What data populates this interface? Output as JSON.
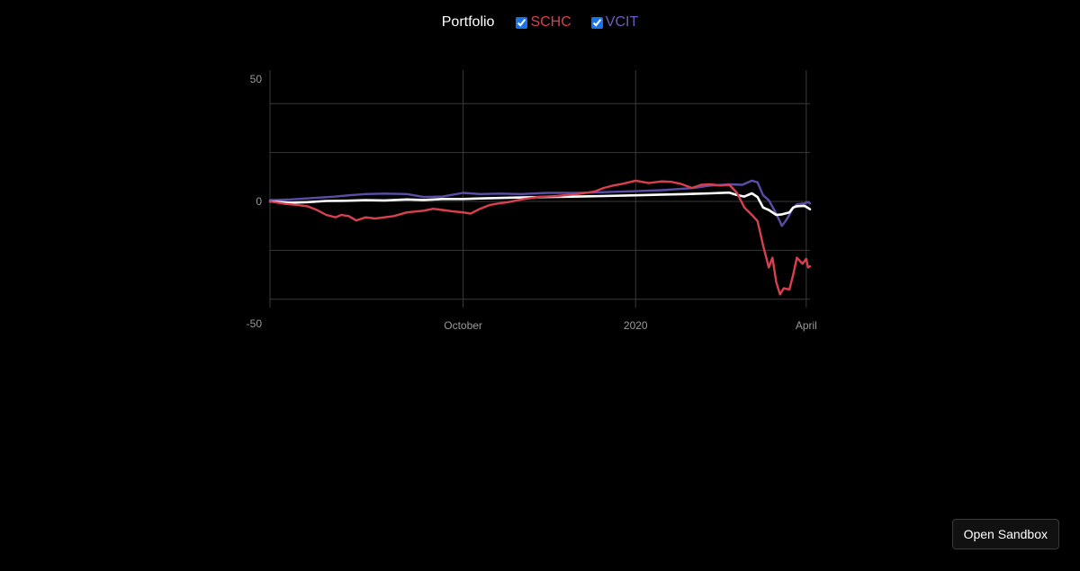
{
  "legend": {
    "portfolio_label": "Portfolio",
    "series": [
      {
        "label": "SCHC",
        "color": "#d9404f",
        "checked": true
      },
      {
        "label": "VCIT",
        "color": "#5a4fa8",
        "checked": true
      }
    ]
  },
  "sandbox_button": "Open Sandbox",
  "chart_data": {
    "type": "line",
    "ylim": [
      -50,
      50
    ],
    "ytick_labels": [
      {
        "value": 50,
        "label": "50"
      },
      {
        "value": 0,
        "label": "0"
      },
      {
        "value": -50,
        "label": "-50"
      }
    ],
    "gridlines_y": [
      40,
      20,
      0,
      -20,
      -40
    ],
    "x_range": [
      "2019-06-20",
      "2020-04-03"
    ],
    "xtick_labels": [
      {
        "date": "2019-10-01",
        "label": "October"
      },
      {
        "date": "2020-01-01",
        "label": "2020"
      },
      {
        "date": "2020-04-01",
        "label": "April"
      }
    ],
    "grid": true,
    "colors": {
      "Portfolio": "#ffffff",
      "SCHC": "#d9404f",
      "VCIT": "#5a4fa8"
    },
    "series": [
      {
        "name": "Portfolio",
        "points": [
          [
            "2019-06-20",
            0
          ],
          [
            "2019-07-01",
            -0.5
          ],
          [
            "2019-07-10",
            -0.3
          ],
          [
            "2019-07-20",
            0.2
          ],
          [
            "2019-08-01",
            0.3
          ],
          [
            "2019-08-10",
            0.5
          ],
          [
            "2019-08-20",
            0.4
          ],
          [
            "2019-09-01",
            0.8
          ],
          [
            "2019-09-10",
            0.6
          ],
          [
            "2019-09-20",
            1.0
          ],
          [
            "2019-10-01",
            1.0
          ],
          [
            "2019-10-10",
            1.2
          ],
          [
            "2019-10-20",
            1.4
          ],
          [
            "2019-11-01",
            1.6
          ],
          [
            "2019-11-15",
            1.8
          ],
          [
            "2019-12-01",
            2.0
          ],
          [
            "2019-12-15",
            2.2
          ],
          [
            "2020-01-01",
            2.5
          ],
          [
            "2020-01-15",
            2.8
          ],
          [
            "2020-02-01",
            3.1
          ],
          [
            "2020-02-10",
            3.3
          ],
          [
            "2020-02-20",
            3.6
          ],
          [
            "2020-02-24",
            2.6
          ],
          [
            "2020-02-28",
            2.0
          ],
          [
            "2020-03-03",
            3.3
          ],
          [
            "2020-03-06",
            1.8
          ],
          [
            "2020-03-09",
            -2.5
          ],
          [
            "2020-03-12",
            -3.5
          ],
          [
            "2020-03-16",
            -5.5
          ],
          [
            "2020-03-19",
            -5.3
          ],
          [
            "2020-03-23",
            -4.5
          ],
          [
            "2020-03-25",
            -2.5
          ],
          [
            "2020-03-27",
            -2.0
          ],
          [
            "2020-03-31",
            -1.8
          ],
          [
            "2020-04-02",
            -2.7
          ],
          [
            "2020-04-03",
            -3.2
          ]
        ]
      },
      {
        "name": "SCHC",
        "points": [
          [
            "2019-06-20",
            0
          ],
          [
            "2019-06-28",
            -1.0
          ],
          [
            "2019-07-05",
            -1.5
          ],
          [
            "2019-07-10",
            -2.0
          ],
          [
            "2019-07-15",
            -3.5
          ],
          [
            "2019-07-20",
            -5.5
          ],
          [
            "2019-07-25",
            -6.5
          ],
          [
            "2019-07-28",
            -5.5
          ],
          [
            "2019-08-01",
            -6.0
          ],
          [
            "2019-08-05",
            -7.8
          ],
          [
            "2019-08-10",
            -6.5
          ],
          [
            "2019-08-15",
            -7.0
          ],
          [
            "2019-08-20",
            -6.5
          ],
          [
            "2019-08-25",
            -6.0
          ],
          [
            "2019-09-01",
            -4.5
          ],
          [
            "2019-09-10",
            -3.8
          ],
          [
            "2019-09-15",
            -3.0
          ],
          [
            "2019-09-20",
            -3.5
          ],
          [
            "2019-09-25",
            -4.0
          ],
          [
            "2019-10-01",
            -4.5
          ],
          [
            "2019-10-05",
            -5.0
          ],
          [
            "2019-10-10",
            -3.0
          ],
          [
            "2019-10-15",
            -1.5
          ],
          [
            "2019-10-20",
            -0.8
          ],
          [
            "2019-10-25",
            -0.3
          ],
          [
            "2019-11-01",
            0.8
          ],
          [
            "2019-11-10",
            1.8
          ],
          [
            "2019-11-20",
            2.2
          ],
          [
            "2019-12-01",
            3.0
          ],
          [
            "2019-12-10",
            4.0
          ],
          [
            "2019-12-15",
            5.5
          ],
          [
            "2019-12-20",
            6.5
          ],
          [
            "2019-12-25",
            7.2
          ],
          [
            "2020-01-01",
            8.5
          ],
          [
            "2020-01-08",
            7.5
          ],
          [
            "2020-01-15",
            8.2
          ],
          [
            "2020-01-20",
            8.0
          ],
          [
            "2020-01-25",
            7.2
          ],
          [
            "2020-01-31",
            5.5
          ],
          [
            "2020-02-05",
            6.8
          ],
          [
            "2020-02-10",
            7.0
          ],
          [
            "2020-02-15",
            6.5
          ],
          [
            "2020-02-20",
            6.8
          ],
          [
            "2020-02-24",
            3.5
          ],
          [
            "2020-02-28",
            -2.5
          ],
          [
            "2020-03-03",
            -5.5
          ],
          [
            "2020-03-06",
            -8.0
          ],
          [
            "2020-03-09",
            -18.0
          ],
          [
            "2020-03-12",
            -27.0
          ],
          [
            "2020-03-14",
            -23.0
          ],
          [
            "2020-03-16",
            -33.0
          ],
          [
            "2020-03-18",
            -38.0
          ],
          [
            "2020-03-20",
            -35.5
          ],
          [
            "2020-03-23",
            -36.0
          ],
          [
            "2020-03-25",
            -30.0
          ],
          [
            "2020-03-27",
            -23.0
          ],
          [
            "2020-03-30",
            -25.5
          ],
          [
            "2020-04-01",
            -23.5
          ],
          [
            "2020-04-02",
            -27.0
          ],
          [
            "2020-04-03",
            -26.5
          ]
        ]
      },
      {
        "name": "VCIT",
        "points": [
          [
            "2019-06-20",
            0.5
          ],
          [
            "2019-07-01",
            0.8
          ],
          [
            "2019-07-15",
            1.5
          ],
          [
            "2019-07-25",
            2.0
          ],
          [
            "2019-08-01",
            2.5
          ],
          [
            "2019-08-10",
            3.0
          ],
          [
            "2019-08-20",
            3.2
          ],
          [
            "2019-09-01",
            3.0
          ],
          [
            "2019-09-10",
            1.8
          ],
          [
            "2019-09-20",
            2.0
          ],
          [
            "2019-10-01",
            3.5
          ],
          [
            "2019-10-10",
            3.0
          ],
          [
            "2019-10-20",
            3.2
          ],
          [
            "2019-11-01",
            3.0
          ],
          [
            "2019-11-15",
            3.5
          ],
          [
            "2019-12-01",
            3.5
          ],
          [
            "2019-12-15",
            3.8
          ],
          [
            "2020-01-01",
            4.2
          ],
          [
            "2020-01-15",
            4.6
          ],
          [
            "2020-02-01",
            5.5
          ],
          [
            "2020-02-10",
            6.5
          ],
          [
            "2020-02-20",
            7.0
          ],
          [
            "2020-02-27",
            6.8
          ],
          [
            "2020-03-03",
            8.5
          ],
          [
            "2020-03-06",
            7.8
          ],
          [
            "2020-03-09",
            2.5
          ],
          [
            "2020-03-12",
            0.5
          ],
          [
            "2020-03-16",
            -5.0
          ],
          [
            "2020-03-19",
            -10.0
          ],
          [
            "2020-03-21",
            -8.0
          ],
          [
            "2020-03-23",
            -5.5
          ],
          [
            "2020-03-25",
            -2.5
          ],
          [
            "2020-03-27",
            -1.2
          ],
          [
            "2020-03-31",
            -0.8
          ],
          [
            "2020-04-02",
            -0.3
          ],
          [
            "2020-04-03",
            -0.8
          ]
        ]
      }
    ]
  }
}
